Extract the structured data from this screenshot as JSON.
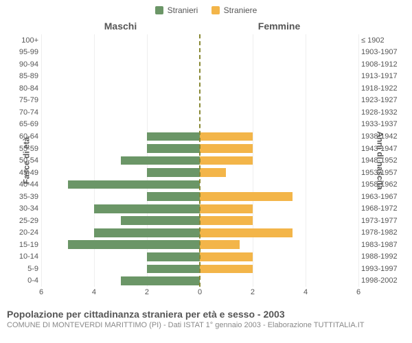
{
  "legend": {
    "male_label": "Stranieri",
    "female_label": "Straniere"
  },
  "colors": {
    "male": "#6b9667",
    "female": "#f3b549",
    "midline": "#888833",
    "grid": "#eeeeee",
    "text": "#555555",
    "subtext": "#888888",
    "background": "#ffffff"
  },
  "column_headers": {
    "left": "Maschi",
    "right": "Femmine"
  },
  "axis_titles": {
    "left": "Fasce di età",
    "right": "Anni di nascita"
  },
  "chart": {
    "type": "population-pyramid",
    "xlim": 6,
    "xticks": [
      6,
      4,
      2,
      0,
      2,
      4,
      6
    ],
    "bar_height_ratio": 0.72,
    "rows": [
      {
        "age": "100+",
        "year": "≤ 1902",
        "m": 0,
        "f": 0
      },
      {
        "age": "95-99",
        "year": "1903-1907",
        "m": 0,
        "f": 0
      },
      {
        "age": "90-94",
        "year": "1908-1912",
        "m": 0,
        "f": 0
      },
      {
        "age": "85-89",
        "year": "1913-1917",
        "m": 0,
        "f": 0
      },
      {
        "age": "80-84",
        "year": "1918-1922",
        "m": 0,
        "f": 0
      },
      {
        "age": "75-79",
        "year": "1923-1927",
        "m": 0,
        "f": 0
      },
      {
        "age": "70-74",
        "year": "1928-1932",
        "m": 0,
        "f": 0
      },
      {
        "age": "65-69",
        "year": "1933-1937",
        "m": 0,
        "f": 0
      },
      {
        "age": "60-64",
        "year": "1938-1942",
        "m": 2,
        "f": 2
      },
      {
        "age": "55-59",
        "year": "1943-1947",
        "m": 2,
        "f": 2
      },
      {
        "age": "50-54",
        "year": "1948-1952",
        "m": 3,
        "f": 2
      },
      {
        "age": "45-49",
        "year": "1953-1957",
        "m": 2,
        "f": 1
      },
      {
        "age": "40-44",
        "year": "1958-1962",
        "m": 5,
        "f": 0
      },
      {
        "age": "35-39",
        "year": "1963-1967",
        "m": 2,
        "f": 3.5
      },
      {
        "age": "30-34",
        "year": "1968-1972",
        "m": 4,
        "f": 2
      },
      {
        "age": "25-29",
        "year": "1973-1977",
        "m": 3,
        "f": 2
      },
      {
        "age": "20-24",
        "year": "1978-1982",
        "m": 4,
        "f": 3.5
      },
      {
        "age": "15-19",
        "year": "1983-1987",
        "m": 5,
        "f": 1.5
      },
      {
        "age": "10-14",
        "year": "1988-1992",
        "m": 2,
        "f": 2
      },
      {
        "age": "5-9",
        "year": "1993-1997",
        "m": 2,
        "f": 2
      },
      {
        "age": "0-4",
        "year": "1998-2002",
        "m": 3,
        "f": 0
      }
    ]
  },
  "caption": {
    "title": "Popolazione per cittadinanza straniera per età e sesso - 2003",
    "subtitle": "COMUNE DI MONTEVERDI MARITTIMO (PI) - Dati ISTAT 1° gennaio 2003 - Elaborazione TUTTITALIA.IT"
  }
}
